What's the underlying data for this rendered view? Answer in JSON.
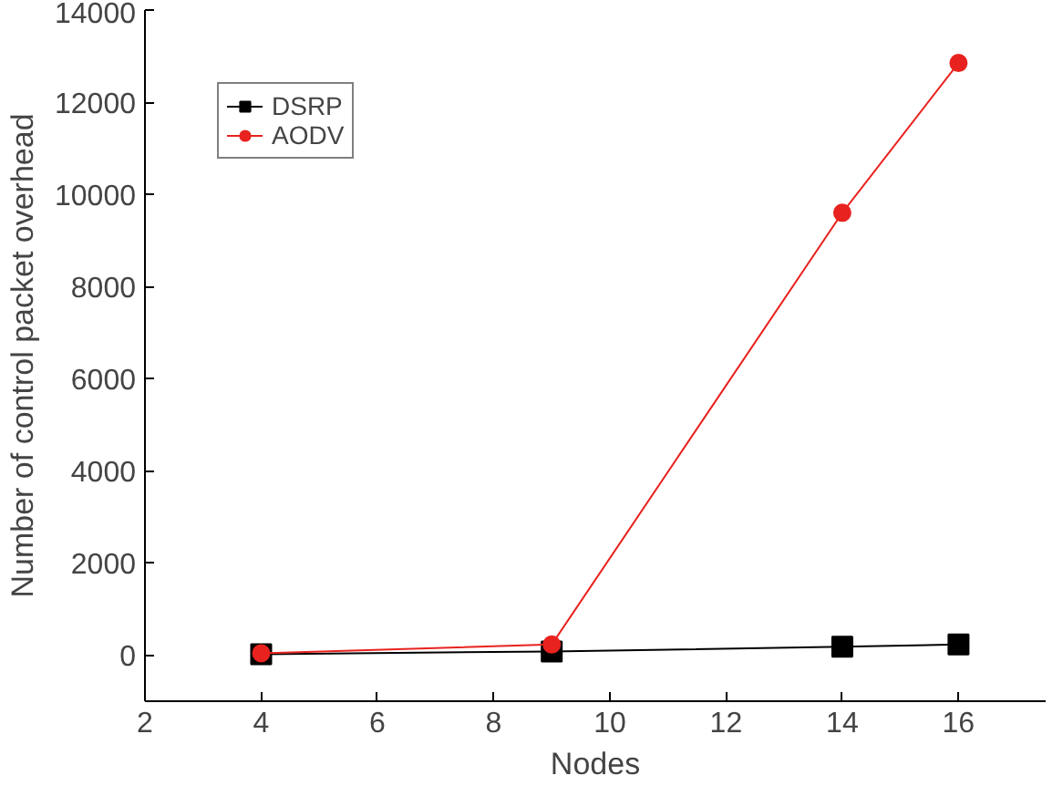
{
  "chart_data": {
    "type": "line",
    "xlabel": "Nodes",
    "ylabel": "Number of control packet overhead",
    "x": [
      4,
      9,
      14,
      16
    ],
    "series": [
      {
        "name": "DSRP",
        "color": "#000000",
        "marker": "square",
        "values": [
          20,
          80,
          180,
          230
        ]
      },
      {
        "name": "AODV",
        "color": "#e8231f",
        "marker": "circle",
        "values": [
          40,
          230,
          9600,
          12850
        ]
      }
    ],
    "xlim": [
      2,
      17.5
    ],
    "xticks": [
      2,
      4,
      6,
      8,
      10,
      12,
      14,
      16
    ],
    "ylim": [
      -1000,
      14000
    ],
    "yticks": [
      0,
      2000,
      4000,
      6000,
      8000,
      10000,
      12000,
      14000
    ],
    "grid": false,
    "legend": "top left"
  }
}
